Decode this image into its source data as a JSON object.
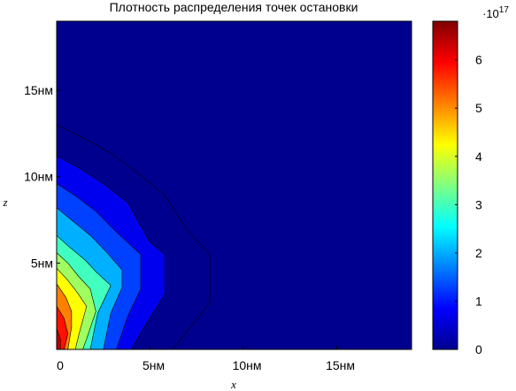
{
  "chart_data": {
    "type": "filled-contour",
    "title": "Плотность распределения точек остановки",
    "xlabel": "x",
    "ylabel": "z",
    "xlim": [
      0,
      19
    ],
    "ylim": [
      0,
      19
    ],
    "x_ticks": [
      {
        "value": 0,
        "label": "0"
      },
      {
        "value": 5,
        "label": "5нм"
      },
      {
        "value": 10,
        "label": "10нм"
      },
      {
        "value": 15,
        "label": "15нм"
      }
    ],
    "y_ticks": [
      {
        "value": 5,
        "label": "5нм"
      },
      {
        "value": 10,
        "label": "10нм"
      },
      {
        "value": 15,
        "label": "15нм"
      }
    ],
    "colorbar": {
      "colormap": "jet",
      "range": [
        0,
        6.8
      ],
      "multiplier_label": "·10",
      "multiplier_exponent": "17",
      "ticks": [
        {
          "value": 0,
          "label": "0"
        },
        {
          "value": 1,
          "label": "1"
        },
        {
          "value": 2,
          "label": "2"
        },
        {
          "value": 3,
          "label": "3"
        },
        {
          "value": 4,
          "label": "4"
        },
        {
          "value": 5,
          "label": "5"
        },
        {
          "value": 6,
          "label": "6"
        }
      ]
    },
    "contour_levels": [
      {
        "level": 0.0,
        "color": "#00008f",
        "boundary": [
          [
            0,
            13
          ],
          [
            1.5,
            12.2
          ],
          [
            3,
            11.3
          ],
          [
            4.5,
            10.1
          ],
          [
            5.8,
            8.9
          ],
          [
            7,
            6.9
          ],
          [
            8.2,
            5.5
          ],
          [
            8.2,
            2.7
          ],
          [
            6.2,
            0
          ]
        ]
      },
      {
        "level": 0.45,
        "color": "#0000ef",
        "boundary": [
          [
            0,
            11.2
          ],
          [
            1.2,
            10.5
          ],
          [
            2.5,
            9.6
          ],
          [
            3.8,
            8.5
          ],
          [
            5,
            6.2
          ],
          [
            5.8,
            5.5
          ],
          [
            5.8,
            3.2
          ],
          [
            4.8,
            1.5
          ],
          [
            4,
            0
          ]
        ]
      },
      {
        "level": 0.9,
        "color": "#0040ff",
        "boundary": [
          [
            0,
            9.6
          ],
          [
            1,
            8.9
          ],
          [
            2.1,
            8
          ],
          [
            3.2,
            6.8
          ],
          [
            4.5,
            5.5
          ],
          [
            4.5,
            3.5
          ],
          [
            3.8,
            1.9
          ],
          [
            3.2,
            0
          ]
        ]
      },
      {
        "level": 1.35,
        "color": "#00b0ff",
        "boundary": [
          [
            0,
            8.2
          ],
          [
            0.9,
            7.4
          ],
          [
            1.8,
            6.6
          ],
          [
            2.7,
            5.6
          ],
          [
            3.5,
            4.6
          ],
          [
            3.5,
            3.6
          ],
          [
            2.9,
            2.1
          ],
          [
            2.5,
            0
          ]
        ]
      },
      {
        "level": 1.8,
        "color": "#40ffbf",
        "boundary": [
          [
            0,
            6.6
          ],
          [
            0.6,
            6
          ],
          [
            1.5,
            5.2
          ],
          [
            2.1,
            4.5
          ],
          [
            2.9,
            3.7
          ],
          [
            2.2,
            2.1
          ],
          [
            1.8,
            0
          ]
        ]
      },
      {
        "level": 2.25,
        "color": "#9fff60",
        "boundary": [
          [
            0,
            5.6
          ],
          [
            0.6,
            5
          ],
          [
            1.2,
            4.2
          ],
          [
            1.8,
            3.5
          ],
          [
            2.1,
            2.2
          ],
          [
            1.6,
            0.6
          ],
          [
            1.4,
            0
          ]
        ]
      },
      {
        "level": 2.7,
        "color": "#ffff00",
        "boundary": [
          [
            0,
            4.7
          ],
          [
            0.6,
            4
          ],
          [
            1.1,
            3.3
          ],
          [
            1.6,
            2.5
          ],
          [
            1.2,
            0.9
          ],
          [
            1.0,
            0
          ]
        ]
      },
      {
        "level": 3.6,
        "color": "#ff8000",
        "boundary": [
          [
            0,
            3.8
          ],
          [
            0.5,
            3
          ],
          [
            0.8,
            2.2
          ],
          [
            0.8,
            1.3
          ],
          [
            0.6,
            0
          ]
        ]
      },
      {
        "level": 4.5,
        "color": "#ff1000",
        "boundary": [
          [
            0,
            2.5
          ],
          [
            0.4,
            1.8
          ],
          [
            0.6,
            0.9
          ],
          [
            0.4,
            0
          ]
        ]
      },
      {
        "level": 5.4,
        "color": "#bf0000",
        "boundary": [
          [
            0,
            1.2
          ],
          [
            0.2,
            0.6
          ],
          [
            0.2,
            0
          ]
        ]
      }
    ]
  }
}
